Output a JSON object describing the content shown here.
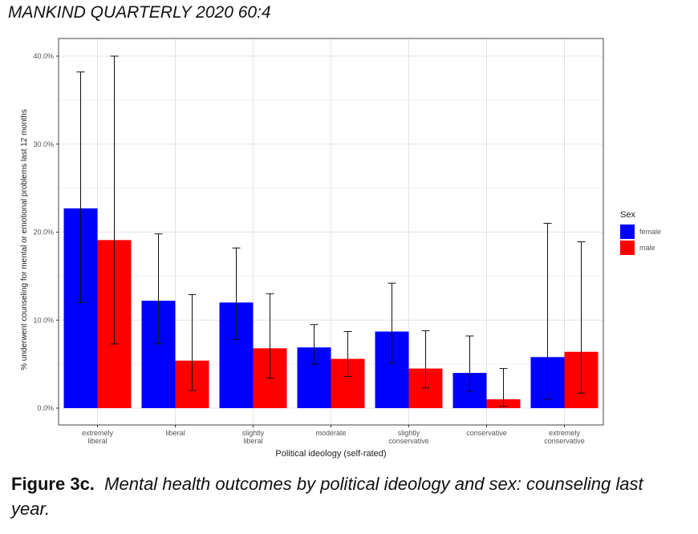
{
  "header": {
    "journal": "MANKIND QUARTERLY 2020 60:4"
  },
  "caption": {
    "label": "Figure 3c.",
    "text": "Mental health outcomes by political ideology and sex: counseling last year."
  },
  "colors": {
    "female": "#0000ff",
    "male": "#ff0000",
    "grid": "#e4e4e4",
    "panel_border": "#444444"
  },
  "chart_data": {
    "type": "bar",
    "title": "",
    "xlabel": "Political ideology (self-rated)",
    "ylabel": "% underwent counseling for mental or emotional problems last 12 months",
    "ylim": [
      0,
      40
    ],
    "y_ticks": [
      "0.0%",
      "10.0%",
      "20.0%",
      "30.0%",
      "40.0%"
    ],
    "categories": [
      [
        "extremely",
        "liberal"
      ],
      [
        "liberal"
      ],
      [
        "slightly",
        "liberal"
      ],
      [
        "moderate"
      ],
      [
        "slightly",
        "conservative"
      ],
      [
        "conservative"
      ],
      [
        "extremely",
        "conservative"
      ]
    ],
    "legend": {
      "title": "Sex",
      "position": "right"
    },
    "grid": true,
    "series": [
      {
        "name": "female",
        "values": [
          22.7,
          12.2,
          12.0,
          6.9,
          8.7,
          4.0,
          5.8
        ],
        "err_low": [
          12.0,
          7.3,
          7.8,
          5.0,
          5.1,
          1.9,
          1.0
        ],
        "err_high": [
          38.2,
          19.8,
          18.2,
          9.5,
          14.2,
          8.2,
          21.0
        ]
      },
      {
        "name": "male",
        "values": [
          19.1,
          5.4,
          6.8,
          5.6,
          4.5,
          1.0,
          6.4
        ],
        "err_low": [
          7.3,
          2.0,
          3.4,
          3.6,
          2.3,
          0.2,
          1.7
        ],
        "err_high": [
          40.0,
          12.9,
          13.0,
          8.7,
          8.8,
          4.5,
          18.9
        ]
      }
    ]
  }
}
